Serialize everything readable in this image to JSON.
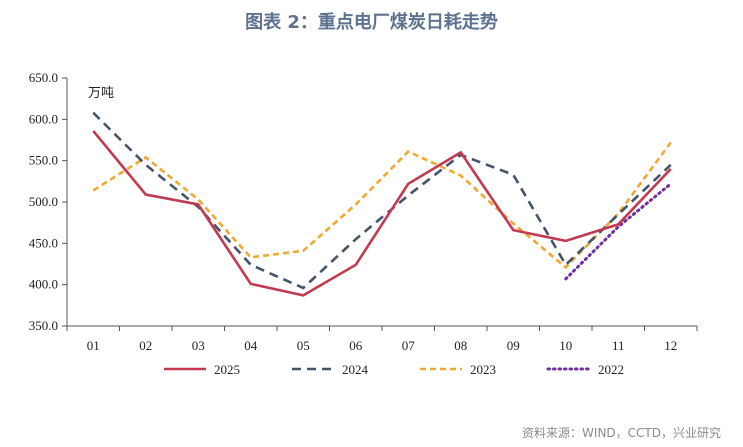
{
  "title": "图表 2：重点电厂煤炭日耗走势",
  "source": "资料来源：WIND，CCTD，兴业研究",
  "chart_data": {
    "type": "line",
    "unit_label": "万吨",
    "categories": [
      "01",
      "02",
      "03",
      "04",
      "05",
      "06",
      "07",
      "08",
      "09",
      "10",
      "11",
      "12"
    ],
    "ylim": [
      350,
      650
    ],
    "yticks": [
      "350.0",
      "400.0",
      "450.0",
      "500.0",
      "550.0",
      "600.0",
      "650.0"
    ],
    "grid": false,
    "legend": "bottom",
    "series": [
      {
        "name": "2025",
        "color": "#c23a50",
        "style": "solid",
        "values": [
          586,
          509,
          497,
          401,
          387,
          424,
          522,
          560,
          466,
          453,
          473,
          540
        ]
      },
      {
        "name": "2024",
        "color": "#44546a",
        "style": "dash",
        "values": [
          608,
          545,
          494,
          424,
          396,
          455,
          508,
          557,
          533,
          424,
          485,
          545
        ]
      },
      {
        "name": "2023",
        "color": "#f0a830",
        "style": "shortdash",
        "values": [
          514,
          554,
          503,
          433,
          441,
          497,
          561,
          532,
          474,
          421,
          486,
          572
        ]
      },
      {
        "name": "2022",
        "color": "#7030a0",
        "style": "dot",
        "values": [
          null,
          null,
          null,
          null,
          null,
          null,
          null,
          null,
          null,
          407,
          470,
          522
        ]
      }
    ]
  }
}
